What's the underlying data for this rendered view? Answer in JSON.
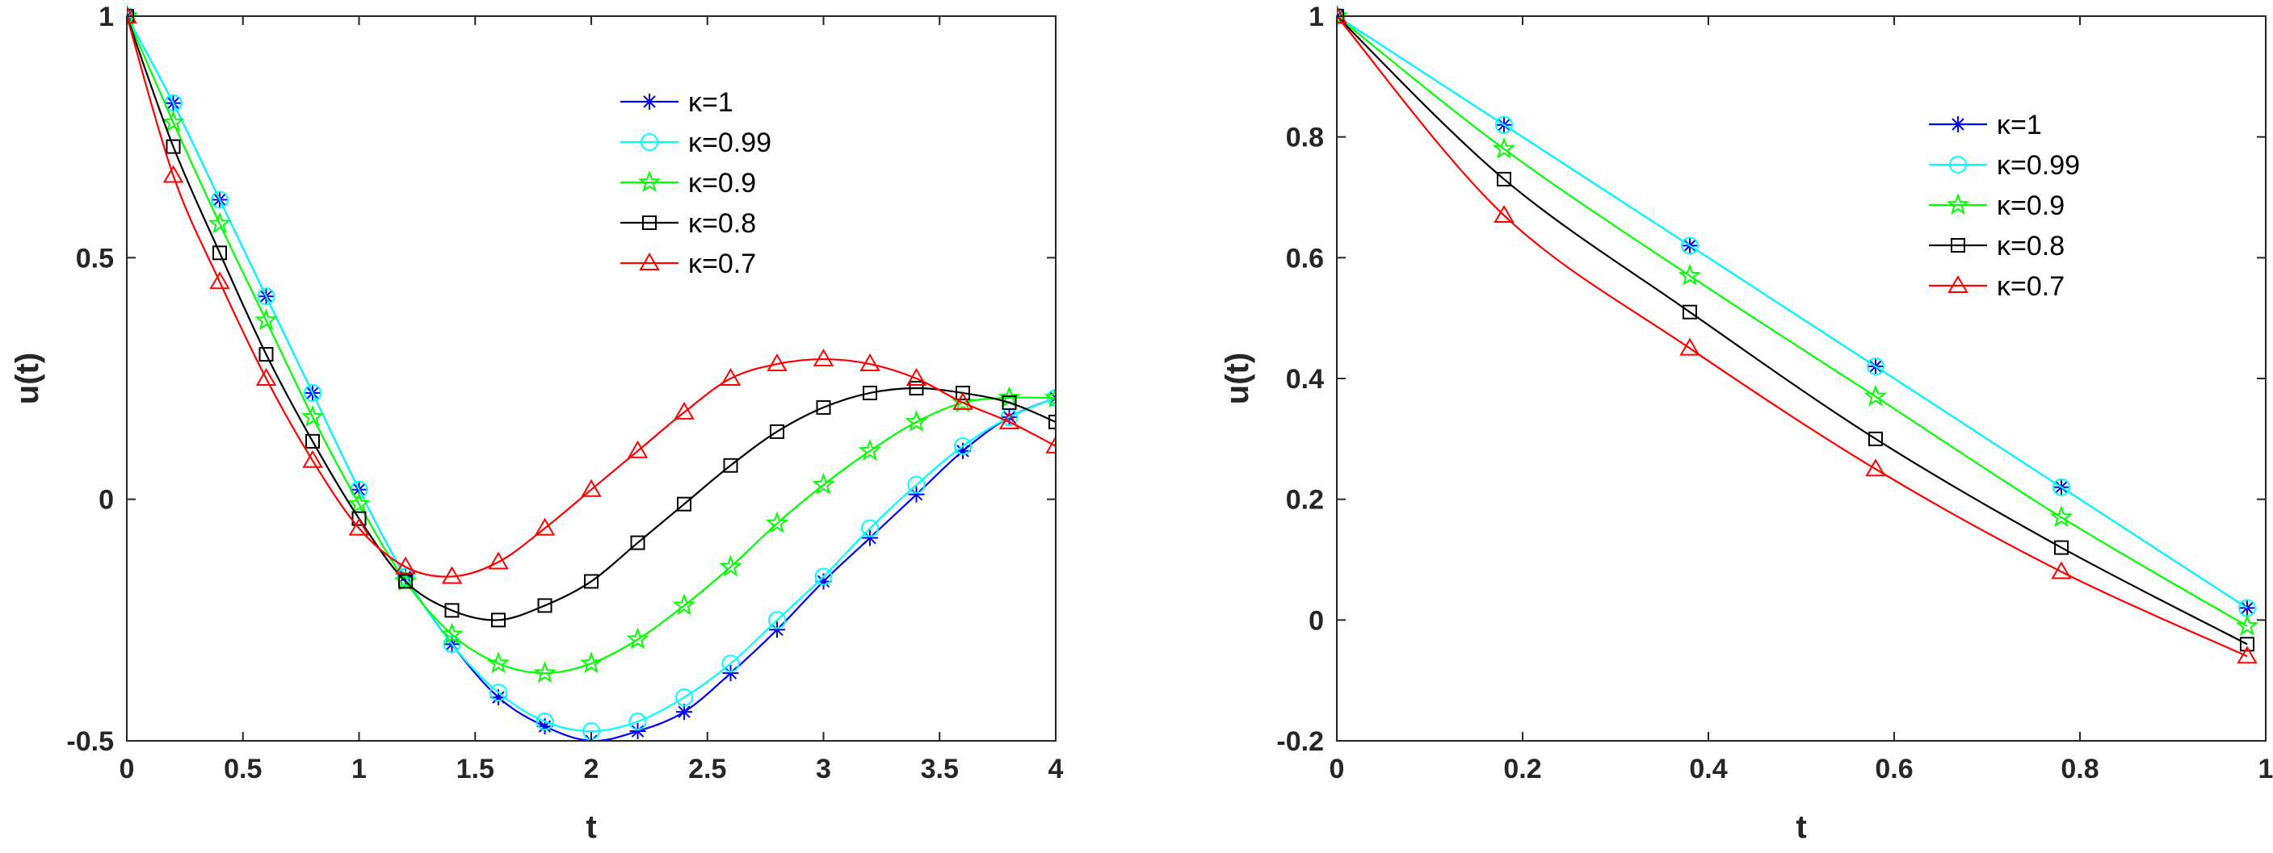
{
  "chart_data": [
    {
      "type": "line",
      "xlabel": "t",
      "ylabel": "u(t)",
      "xlim": [
        0,
        4
      ],
      "ylim": [
        -0.5,
        1
      ],
      "xticks": [
        0,
        0.5,
        1,
        1.5,
        2,
        2.5,
        3,
        3.5,
        4
      ],
      "xtick_labels": [
        "0",
        "0.5",
        "1",
        "1.5",
        "2",
        "2.5",
        "3",
        "3.5",
        "4"
      ],
      "yticks": [
        -0.5,
        0,
        0.5,
        1
      ],
      "ytick_labels": [
        "-0.5",
        "0",
        "0.5",
        "1"
      ],
      "grid": false,
      "legend_position": "top-right",
      "series": [
        {
          "name": "κ=1",
          "color": "#0000ff",
          "marker": "asterisk",
          "x": [
            0,
            0.2,
            0.4,
            0.6,
            0.8,
            1.0,
            1.2,
            1.4,
            1.6,
            1.8,
            2.0,
            2.2,
            2.4,
            2.6,
            2.8,
            3.0,
            3.2,
            3.4,
            3.6,
            3.8,
            4.0
          ],
          "y": [
            1.0,
            0.82,
            0.62,
            0.42,
            0.22,
            0.02,
            -0.16,
            -0.3,
            -0.41,
            -0.47,
            -0.5,
            -0.48,
            -0.44,
            -0.36,
            -0.27,
            -0.17,
            -0.08,
            0.01,
            0.1,
            0.17,
            0.21
          ]
        },
        {
          "name": "κ=0.99",
          "color": "#00ffff",
          "marker": "circle",
          "x": [
            0,
            0.2,
            0.4,
            0.6,
            0.8,
            1.0,
            1.2,
            1.4,
            1.6,
            1.8,
            2.0,
            2.2,
            2.4,
            2.6,
            2.8,
            3.0,
            3.2,
            3.4,
            3.6,
            3.8,
            4.0
          ],
          "y": [
            1.0,
            0.82,
            0.62,
            0.42,
            0.22,
            0.02,
            -0.16,
            -0.3,
            -0.4,
            -0.46,
            -0.48,
            -0.46,
            -0.41,
            -0.34,
            -0.25,
            -0.16,
            -0.06,
            0.03,
            0.11,
            0.17,
            0.21
          ]
        },
        {
          "name": "κ=0.9",
          "color": "#00ff00",
          "marker": "star",
          "x": [
            0,
            0.2,
            0.4,
            0.6,
            0.8,
            1.0,
            1.2,
            1.4,
            1.6,
            1.8,
            2.0,
            2.2,
            2.4,
            2.6,
            2.8,
            3.0,
            3.2,
            3.4,
            3.6,
            3.8,
            4.0
          ],
          "y": [
            1.0,
            0.78,
            0.57,
            0.37,
            0.17,
            -0.01,
            -0.17,
            -0.28,
            -0.34,
            -0.36,
            -0.34,
            -0.29,
            -0.22,
            -0.14,
            -0.05,
            0.03,
            0.1,
            0.16,
            0.2,
            0.21,
            0.21
          ]
        },
        {
          "name": "κ=0.8",
          "color": "#000000",
          "marker": "square",
          "x": [
            0,
            0.2,
            0.4,
            0.6,
            0.8,
            1.0,
            1.2,
            1.4,
            1.6,
            1.8,
            2.0,
            2.2,
            2.4,
            2.6,
            2.8,
            3.0,
            3.2,
            3.4,
            3.6,
            3.8,
            4.0
          ],
          "y": [
            1.0,
            0.73,
            0.51,
            0.3,
            0.12,
            -0.04,
            -0.17,
            -0.23,
            -0.25,
            -0.22,
            -0.17,
            -0.09,
            -0.01,
            0.07,
            0.14,
            0.19,
            0.22,
            0.23,
            0.22,
            0.2,
            0.16
          ]
        },
        {
          "name": "κ=0.7",
          "color": "#ff0000",
          "marker": "triangle",
          "x": [
            0,
            0.2,
            0.4,
            0.6,
            0.8,
            1.0,
            1.2,
            1.4,
            1.6,
            1.8,
            2.0,
            2.2,
            2.4,
            2.6,
            2.8,
            3.0,
            3.2,
            3.4,
            3.6,
            3.8,
            4.0
          ],
          "y": [
            1.0,
            0.67,
            0.45,
            0.25,
            0.08,
            -0.06,
            -0.14,
            -0.16,
            -0.13,
            -0.06,
            0.02,
            0.1,
            0.18,
            0.25,
            0.28,
            0.29,
            0.28,
            0.25,
            0.2,
            0.16,
            0.11
          ]
        }
      ]
    },
    {
      "type": "line",
      "xlabel": "t",
      "ylabel": "u(t)",
      "xlim": [
        0,
        1
      ],
      "ylim": [
        -0.2,
        1
      ],
      "xticks": [
        0,
        0.2,
        0.4,
        0.6,
        0.8,
        1
      ],
      "xtick_labels": [
        "0",
        "0.2",
        "0.4",
        "0.6",
        "0.8",
        "1"
      ],
      "yticks": [
        -0.2,
        0,
        0.2,
        0.4,
        0.6,
        0.8,
        1
      ],
      "ytick_labels": [
        "-0.2",
        "0",
        "0.2",
        "0.4",
        "0.6",
        "0.8",
        "1"
      ],
      "grid": false,
      "legend_position": "top-right",
      "series": [
        {
          "name": "κ=1",
          "color": "#0000ff",
          "marker": "asterisk",
          "x": [
            0,
            0.18,
            0.38,
            0.58,
            0.78,
            0.98
          ],
          "y": [
            1.0,
            0.82,
            0.62,
            0.42,
            0.22,
            0.02
          ]
        },
        {
          "name": "κ=0.99",
          "color": "#00ffff",
          "marker": "circle",
          "x": [
            0,
            0.18,
            0.38,
            0.58,
            0.78,
            0.98
          ],
          "y": [
            1.0,
            0.82,
            0.62,
            0.42,
            0.22,
            0.02
          ]
        },
        {
          "name": "κ=0.9",
          "color": "#00ff00",
          "marker": "star",
          "x": [
            0,
            0.18,
            0.38,
            0.58,
            0.78,
            0.98
          ],
          "y": [
            1.0,
            0.78,
            0.57,
            0.37,
            0.17,
            -0.01
          ]
        },
        {
          "name": "κ=0.8",
          "color": "#000000",
          "marker": "square",
          "x": [
            0,
            0.18,
            0.38,
            0.58,
            0.78,
            0.98
          ],
          "y": [
            1.0,
            0.73,
            0.51,
            0.3,
            0.12,
            -0.04
          ]
        },
        {
          "name": "κ=0.7",
          "color": "#ff0000",
          "marker": "triangle",
          "x": [
            0,
            0.18,
            0.38,
            0.58,
            0.78,
            0.98
          ],
          "y": [
            1.0,
            0.67,
            0.45,
            0.25,
            0.08,
            -0.06
          ]
        }
      ]
    }
  ]
}
